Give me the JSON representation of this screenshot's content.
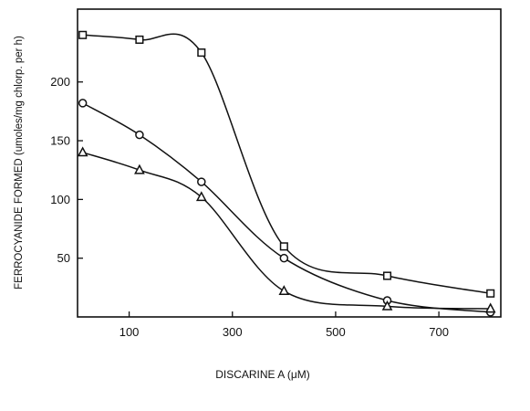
{
  "chart_data": {
    "type": "line",
    "xlabel": "DISCARINE A (μM)",
    "ylabel": "FERROCYANIDE FORMED (umoles/mg chlorp. per h)",
    "xlim": [
      0,
      820
    ],
    "ylim": [
      0,
      262
    ],
    "x_ticks": [
      100,
      300,
      500,
      700
    ],
    "y_ticks": [
      50,
      100,
      150,
      200
    ],
    "grid": false,
    "legend": "none",
    "series": [
      {
        "marker": "square",
        "x": [
          10,
          120,
          240,
          400,
          600,
          800
        ],
        "y": [
          240,
          236,
          225,
          60,
          35,
          20
        ]
      },
      {
        "marker": "circle",
        "x": [
          10,
          120,
          240,
          400,
          600,
          800
        ],
        "y": [
          182,
          155,
          115,
          50,
          14,
          4
        ]
      },
      {
        "marker": "triangle",
        "x": [
          10,
          120,
          240,
          400,
          600,
          800
        ],
        "y": [
          140,
          125,
          102,
          22,
          9,
          7
        ]
      }
    ]
  }
}
